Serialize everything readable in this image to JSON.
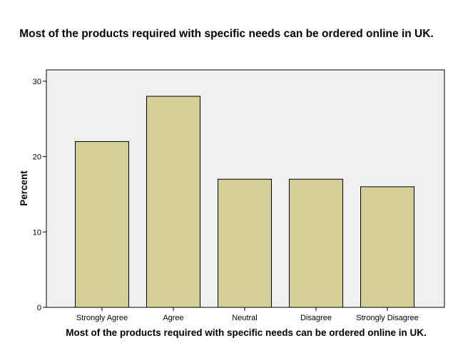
{
  "chart_data": {
    "type": "bar",
    "title": "Most of the products required with specific needs can be ordered online in UK.",
    "xlabel": "Most of the products required with specific needs can be ordered online in UK.",
    "ylabel": "Percent",
    "categories": [
      "Strongly Agree",
      "Agree",
      "Neutral",
      "Disagree",
      "Strongly Disagree"
    ],
    "values": [
      22,
      28,
      17,
      17,
      16
    ],
    "ylim": [
      0,
      31.5
    ],
    "yticks": [
      0,
      10,
      20,
      30
    ],
    "grid": false,
    "colors": {
      "bar_fill": "#d4cf99",
      "bar_stroke": "#000000",
      "plot_background": "#f0f0f0"
    }
  }
}
